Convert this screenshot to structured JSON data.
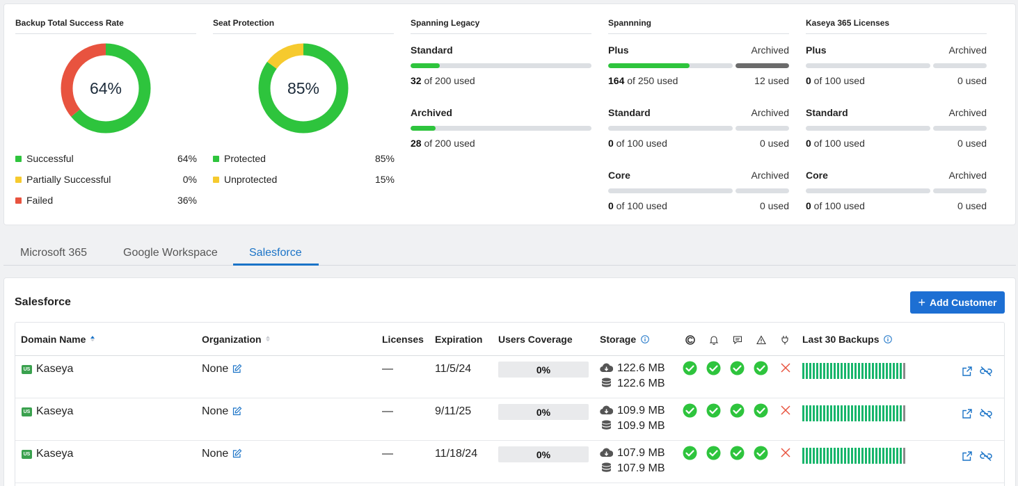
{
  "summary": {
    "backup_rate": {
      "title": "Backup Total Success Rate",
      "center": "64%",
      "segments": [
        {
          "label": "Successful",
          "value": 64,
          "color": "#2ec43d"
        },
        {
          "label": "Partially Successful",
          "value": 0,
          "color": "#f6ca2e"
        },
        {
          "label": "Failed",
          "value": 36,
          "color": "#e8533f"
        }
      ],
      "legend": [
        {
          "label": "Successful",
          "pct": "64%",
          "color": "#2ec43d"
        },
        {
          "label": "Partially Successful",
          "pct": "0%",
          "color": "#f6ca2e"
        },
        {
          "label": "Failed",
          "pct": "36%",
          "color": "#e8533f"
        }
      ]
    },
    "seat_protection": {
      "title": "Seat Protection",
      "center": "85%",
      "segments": [
        {
          "label": "Protected",
          "value": 85,
          "color": "#2ec43d"
        },
        {
          "label": "Unprotected",
          "value": 15,
          "color": "#f6ca2e"
        }
      ],
      "legend": [
        {
          "label": "Protected",
          "pct": "85%",
          "color": "#2ec43d"
        },
        {
          "label": "Unprotected",
          "pct": "15%",
          "color": "#f6ca2e"
        }
      ]
    },
    "spanning_legacy": {
      "title": "Spanning Legacy",
      "items": [
        {
          "name": "Standard",
          "used": "32",
          "total_text": " of 200 used",
          "fraction": 0.16
        },
        {
          "name": "Archived",
          "used": "28",
          "total_text": " of 200 used",
          "fraction": 0.14
        }
      ]
    },
    "spanning": {
      "title": "Spannning",
      "items": [
        {
          "name": "Plus",
          "archived_label": "Archived",
          "used": "164",
          "total_text": " of 250 used",
          "fraction": 0.656,
          "archived_used": "12 used",
          "archived_fraction": 1
        },
        {
          "name": "Standard",
          "archived_label": "Archived",
          "used": "0",
          "total_text": " of 100 used",
          "fraction": 0,
          "archived_used": "0 used",
          "archived_fraction": 0
        },
        {
          "name": "Core",
          "archived_label": "Archived",
          "used": "0",
          "total_text": " of 100 used",
          "fraction": 0,
          "archived_used": "0 used",
          "archived_fraction": 0
        }
      ]
    },
    "kaseya_365": {
      "title": "Kaseya 365 Licenses",
      "items": [
        {
          "name": "Plus",
          "archived_label": "Archived",
          "used": "0",
          "total_text": " of 100 used",
          "fraction": 0,
          "archived_used": "0 used",
          "archived_fraction": 0
        },
        {
          "name": "Standard",
          "archived_label": "Archived",
          "used": "0",
          "total_text": " of 100 used",
          "fraction": 0,
          "archived_used": "0 used",
          "archived_fraction": 0
        },
        {
          "name": "Core",
          "archived_label": "Archived",
          "used": "0",
          "total_text": " of 100 used",
          "fraction": 0,
          "archived_used": "0 used",
          "archived_fraction": 0
        }
      ]
    }
  },
  "tabs": [
    {
      "label": "Microsoft 365",
      "active": false
    },
    {
      "label": "Google Workspace",
      "active": false
    },
    {
      "label": "Salesforce",
      "active": true
    }
  ],
  "panel": {
    "title": "Salesforce",
    "add_button": "Add Customer"
  },
  "table": {
    "headers": {
      "domain": "Domain Name",
      "organization": "Organization",
      "licenses": "Licenses",
      "expiration": "Expiration",
      "coverage": "Users Coverage",
      "storage": "Storage",
      "backups": "Last 30 Backups"
    },
    "rows": [
      {
        "region": "US",
        "domain": "Kaseya",
        "organization": "None",
        "licenses": "—",
        "expiration": "11/5/24",
        "coverage": "0%",
        "storage_cloud": "122.6 MB",
        "storage_local": "122.6 MB",
        "successful_backups": 29,
        "total_backups": 30
      },
      {
        "region": "US",
        "domain": "Kaseya",
        "organization": "None",
        "licenses": "—",
        "expiration": "9/11/25",
        "coverage": "0%",
        "storage_cloud": "109.9 MB",
        "storage_local": "109.9 MB",
        "successful_backups": 29,
        "total_backups": 30
      },
      {
        "region": "US",
        "domain": "Kaseya",
        "organization": "None",
        "licenses": "—",
        "expiration": "11/18/24",
        "coverage": "0%",
        "storage_cloud": "107.9 MB",
        "storage_local": "107.9 MB",
        "successful_backups": 29,
        "total_backups": 30
      }
    ]
  }
}
